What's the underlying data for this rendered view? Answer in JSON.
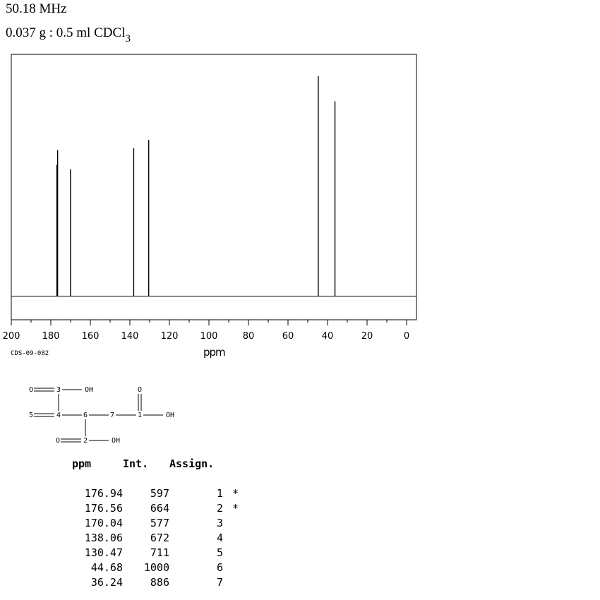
{
  "header": {
    "frequency": "50.18 MHz",
    "sample": "0.037 g : 0.5 ml CDCl",
    "sample_sub": "3"
  },
  "spectrum_code": "CDS-09-082",
  "chart_data": {
    "type": "line",
    "xlabel": "ppm",
    "ylabel": "",
    "xlim": [
      200,
      -5
    ],
    "x_ticks": [
      200,
      180,
      160,
      140,
      120,
      100,
      80,
      60,
      40,
      20,
      0
    ],
    "peaks": [
      {
        "ppm": 176.94,
        "intensity": 597
      },
      {
        "ppm": 176.56,
        "intensity": 664
      },
      {
        "ppm": 170.04,
        "intensity": 577
      },
      {
        "ppm": 138.06,
        "intensity": 672
      },
      {
        "ppm": 130.47,
        "intensity": 711
      },
      {
        "ppm": 44.68,
        "intensity": 1000
      },
      {
        "ppm": 36.24,
        "intensity": 886
      }
    ]
  },
  "structure": {
    "atoms": {
      "O_a": "O",
      "C3": "3",
      "OH_a": "OH",
      "C5": "5",
      "C4": "4",
      "C6": "6",
      "C7": "7",
      "C1": "1",
      "O_1": "O",
      "OH_1": "OH",
      "O_b": "O",
      "C2": "2",
      "OH_b": "OH"
    }
  },
  "peak_table": {
    "headers": [
      "ppm",
      "Int.",
      "Assign."
    ],
    "rows": [
      {
        "ppm": "176.94",
        "int": "597",
        "assign": "1",
        "mark": "*"
      },
      {
        "ppm": "176.56",
        "int": "664",
        "assign": "2",
        "mark": "*"
      },
      {
        "ppm": "170.04",
        "int": "577",
        "assign": "3",
        "mark": ""
      },
      {
        "ppm": "138.06",
        "int": "672",
        "assign": "4",
        "mark": ""
      },
      {
        "ppm": "130.47",
        "int": "711",
        "assign": "5",
        "mark": ""
      },
      {
        "ppm": "44.68",
        "int": "1000",
        "assign": "6",
        "mark": ""
      },
      {
        "ppm": "36.24",
        "int": "886",
        "assign": "7",
        "mark": ""
      }
    ]
  }
}
